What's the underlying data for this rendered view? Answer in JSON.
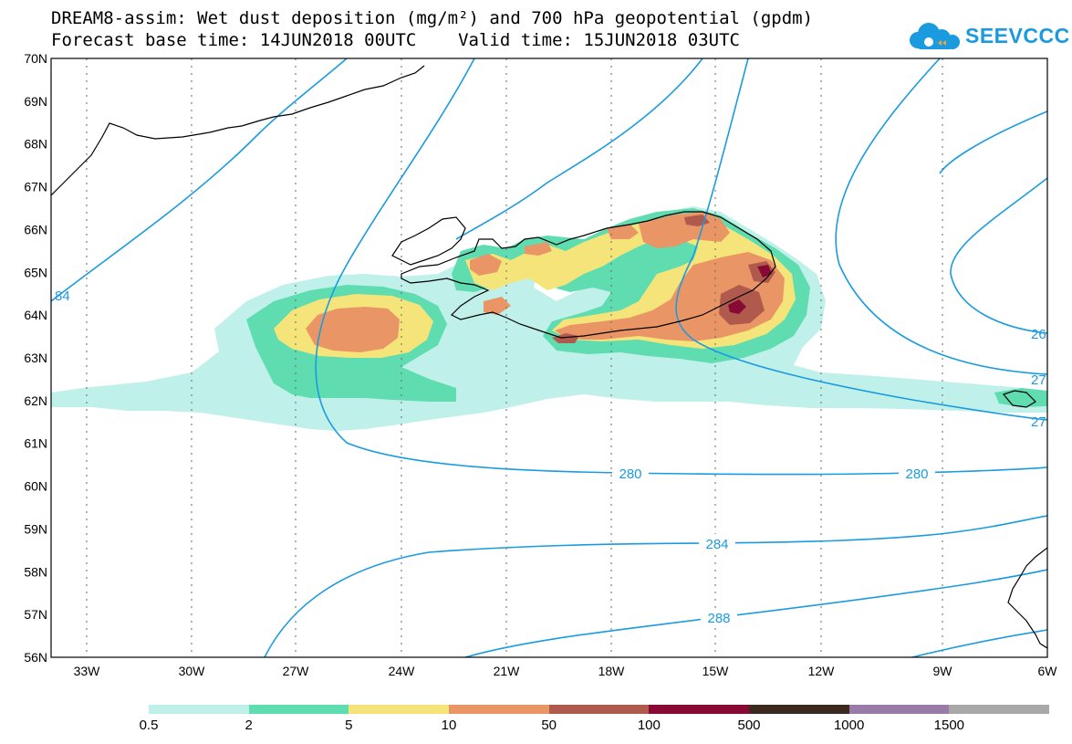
{
  "header": {
    "title_line1": "DREAM8-assim: Wet dust deposition (mg/m²) and 700 hPa geopotential (gpdm)",
    "title_line2": "Forecast base time: 14JUN2018 00UTC    Valid time: 15JUN2018 03UTC",
    "logo_text": "SEEVCCC"
  },
  "axes": {
    "lat_labels": [
      "70N",
      "69N",
      "68N",
      "67N",
      "66N",
      "65N",
      "64N",
      "63N",
      "62N",
      "61N",
      "60N",
      "59N",
      "58N",
      "57N",
      "56N"
    ],
    "lon_labels": [
      "33W",
      "30W",
      "27W",
      "24W",
      "21W",
      "18W",
      "15W",
      "12W",
      "9W",
      "6W"
    ]
  },
  "contour_labels": {
    "c280a": "280",
    "c280b": "280",
    "c284": "284",
    "c288": "288",
    "c284_left": "84",
    "c26_right": "26",
    "c27_right_a": "27",
    "c27_right_b": "27"
  },
  "legend": {
    "ticks": [
      "0.5",
      "2",
      "5",
      "10",
      "50",
      "100",
      "500",
      "1000",
      "1500"
    ],
    "colors": [
      "#bff0ea",
      "#5fdcb0",
      "#f5e47a",
      "#ea9566",
      "#b05a4e",
      "#860a34",
      "#3d2a1e",
      "#9a7aa8",
      "#a8a8a8"
    ]
  },
  "colors": {
    "contour": "#1a9be0",
    "coast": "#000000"
  }
}
